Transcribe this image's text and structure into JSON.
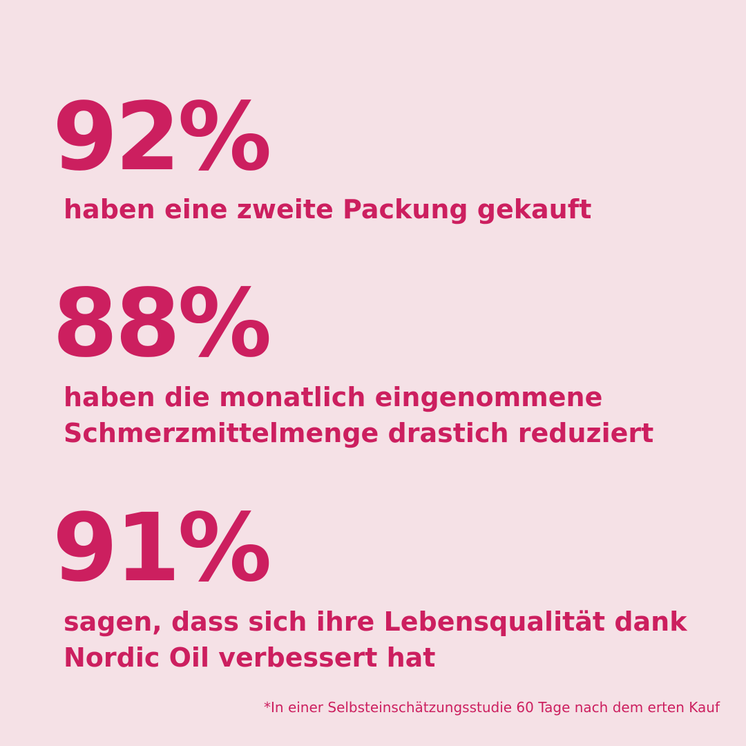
{
  "stats": [
    {
      "figure": "92%",
      "lines": [
        "haben eine zweite Packung gekauft"
      ]
    },
    {
      "figure": "88%",
      "lines": [
        "haben die monatlich eingenommene",
        "Schmerzmittelmenge drastich reduziert"
      ]
    },
    {
      "figure": "91%",
      "lines": [
        "sagen, dass sich ihre Lebensqualität dank",
        "Nordic Oil verbessert hat"
      ]
    }
  ],
  "footnote": "*In einer Selbsteinschätzungsstudie 60 Tage nach dem erten Kauf"
}
